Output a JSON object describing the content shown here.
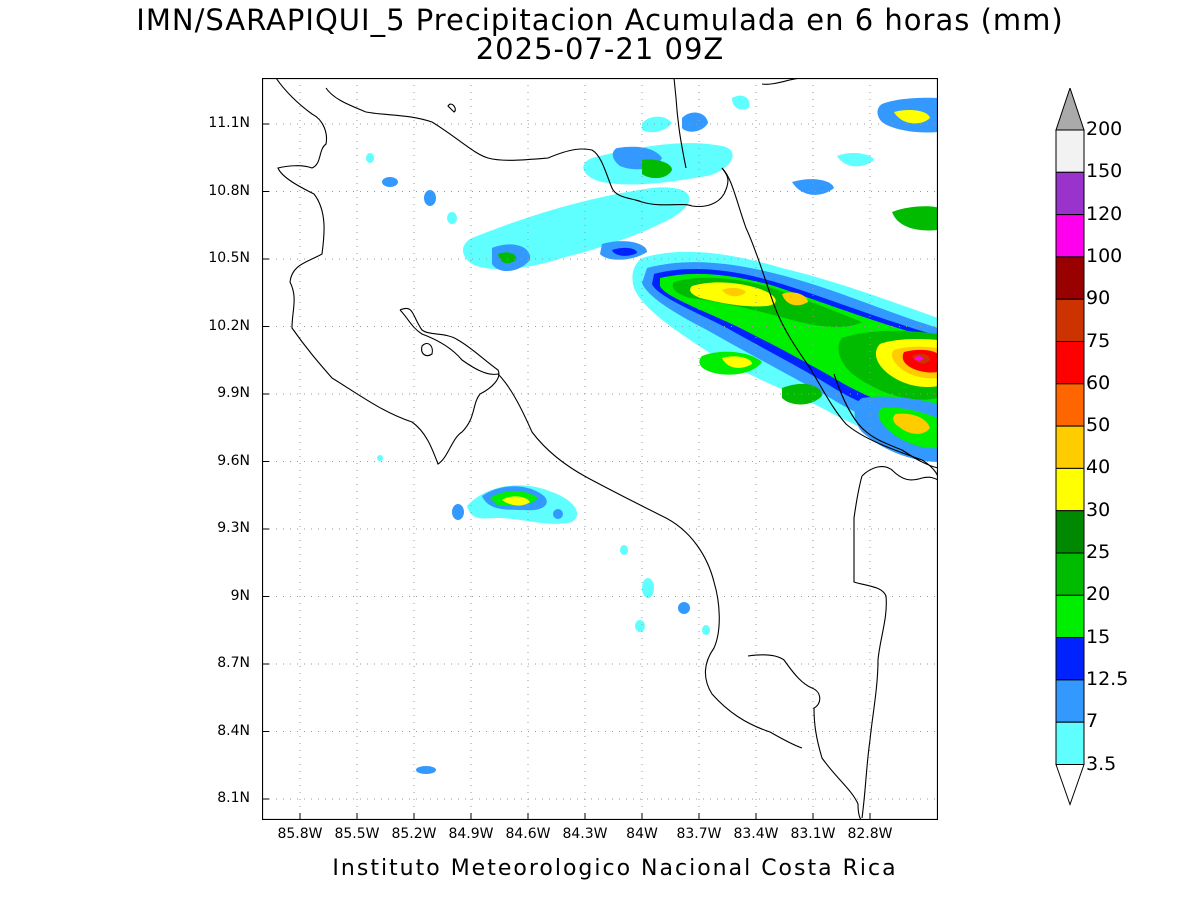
{
  "title": {
    "line1": "IMN/SARAPIQUI_5 Precipitacion Acumulada en 6 horas (mm)",
    "line2": "2025-07-21 09Z"
  },
  "axes": {
    "lat_ticks": [
      "11.1N",
      "10.8N",
      "10.5N",
      "10.2N",
      "9.9N",
      "9.6N",
      "9.3N",
      "9N",
      "8.7N",
      "8.4N",
      "8.1N"
    ],
    "lon_ticks": [
      "85.8W",
      "85.5W",
      "85.2W",
      "84.9W",
      "84.6W",
      "84.3W",
      "84W",
      "83.7W",
      "83.4W",
      "83.1W",
      "82.8W"
    ],
    "grid": "dotted"
  },
  "colorbar": {
    "levels": [
      "3.5",
      "7",
      "12.5",
      "15",
      "20",
      "25",
      "30",
      "40",
      "50",
      "60",
      "75",
      "90",
      "100",
      "120",
      "150",
      "200"
    ],
    "colors": [
      "#5fffff",
      "#3399ff",
      "#0022ff",
      "#00ee00",
      "#00bb00",
      "#008800",
      "#ffff00",
      "#ffcc00",
      "#ff6600",
      "#ff0000",
      "#cc3300",
      "#990000",
      "#ff00ee",
      "#9933cc",
      "#f2f2f2",
      "#aaaaaa"
    ]
  },
  "footer": "Instituto Meteorologico Nacional Costa Rica",
  "map_colors": {
    "c1": "#5fffff",
    "c2": "#3399ff",
    "c3": "#0022ff",
    "c4": "#00ee00",
    "c5": "#00bb00",
    "c6": "#008800",
    "c7": "#ffff00",
    "c8": "#ffcc00",
    "c9": "#ff6600",
    "c10": "#ff0000",
    "c11": "#cc3300",
    "c12": "#ff00ee"
  }
}
